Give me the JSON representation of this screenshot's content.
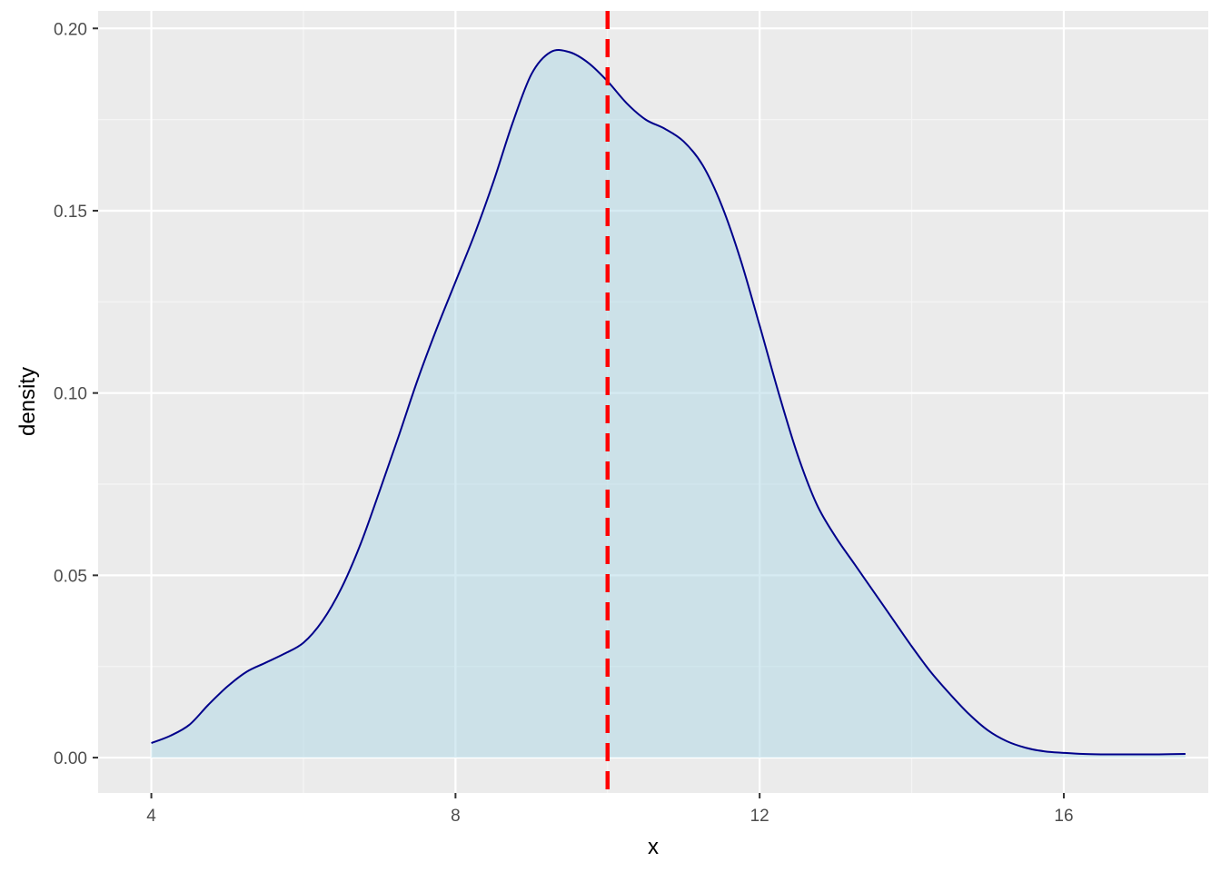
{
  "chart_data": {
    "type": "area",
    "subtype": "density",
    "title": "",
    "xlabel": "x",
    "ylabel": "density",
    "xlim": [
      3.3,
      17.9
    ],
    "ylim": [
      -0.0097,
      0.2048
    ],
    "x_ticks": [
      4,
      8,
      12,
      16
    ],
    "x_minor_ticks": [
      6,
      10,
      14
    ],
    "y_ticks": [
      0.0,
      0.05,
      0.1,
      0.15,
      0.2
    ],
    "y_tick_labels": [
      "0.00",
      "0.05",
      "0.10",
      "0.15",
      "0.20"
    ],
    "y_minor_ticks": [
      0.025,
      0.075,
      0.125,
      0.175
    ],
    "grid": true,
    "legend": "none",
    "colors": {
      "panel_background": "#ebebeb",
      "grid_major": "#ffffff",
      "grid_minor": "#f5f5f5",
      "fill": "#add8e6",
      "fill_opacity": 0.5,
      "line": "#00008b",
      "reference_line": "#ff0000"
    },
    "series": [
      {
        "x": [
          4.0,
          4.25,
          4.5,
          4.75,
          5.0,
          5.25,
          5.5,
          5.75,
          6.0,
          6.25,
          6.5,
          6.75,
          7.0,
          7.25,
          7.5,
          7.75,
          8.0,
          8.25,
          8.5,
          8.75,
          9.0,
          9.25,
          9.5,
          9.75,
          10.0,
          10.25,
          10.5,
          10.75,
          11.0,
          11.25,
          11.5,
          11.75,
          12.0,
          12.25,
          12.5,
          12.75,
          13.0,
          13.25,
          13.5,
          13.75,
          14.0,
          14.25,
          14.5,
          14.75,
          15.0,
          15.25,
          15.5,
          15.75,
          16.0,
          16.25,
          16.5,
          16.75,
          17.0,
          17.25,
          17.6
        ],
        "values": [
          0.004,
          0.006,
          0.009,
          0.0145,
          0.0195,
          0.0235,
          0.026,
          0.0285,
          0.0315,
          0.0375,
          0.0465,
          0.0585,
          0.073,
          0.088,
          0.1035,
          0.1175,
          0.1305,
          0.1435,
          0.158,
          0.174,
          0.1875,
          0.1935,
          0.1935,
          0.1905,
          0.1855,
          0.1795,
          0.175,
          0.1725,
          0.169,
          0.1625,
          0.1515,
          0.1365,
          0.1185,
          0.1,
          0.083,
          0.0695,
          0.0605,
          0.053,
          0.0455,
          0.038,
          0.0305,
          0.0235,
          0.0175,
          0.012,
          0.0075,
          0.0045,
          0.0027,
          0.0017,
          0.0013,
          0.001,
          0.0009,
          0.0009,
          0.0009,
          0.0009,
          0.001
        ]
      }
    ],
    "reference_line": {
      "orientation": "vertical",
      "x": 10.0,
      "style": "dashed"
    }
  }
}
